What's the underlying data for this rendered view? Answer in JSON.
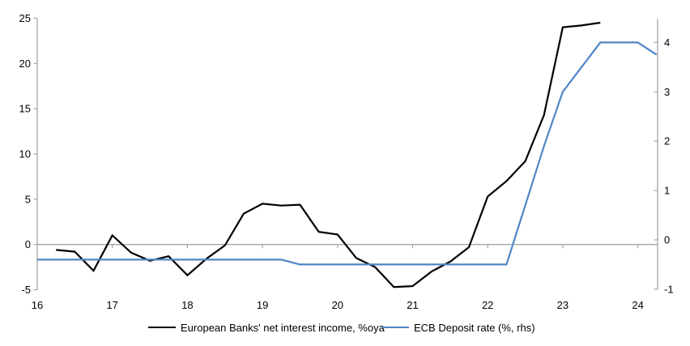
{
  "chart_data": {
    "type": "line",
    "title": "",
    "xlabel": "",
    "ylabel_left": "",
    "ylabel_right": "",
    "grid": "zero-line-only",
    "legend_position": "bottom",
    "x_axis": {
      "ticks": [
        16,
        17,
        18,
        19,
        20,
        21,
        22,
        23,
        24
      ],
      "range": [
        16,
        24.27
      ]
    },
    "left_axis": {
      "ticks": [
        25,
        20,
        15,
        10,
        5,
        0,
        -5
      ],
      "range": [
        -5,
        25
      ]
    },
    "right_axis": {
      "ticks": [
        4,
        3,
        2,
        1,
        0,
        -1
      ],
      "range": [
        -1.01,
        4.49
      ]
    },
    "series": [
      {
        "name": "European Banks' net interest income, %oya",
        "axis": "left",
        "color": "#000000",
        "points": [
          [
            16.25,
            -0.6
          ],
          [
            16.5,
            -0.8
          ],
          [
            16.75,
            -2.9
          ],
          [
            17.0,
            1.0
          ],
          [
            17.25,
            -0.9
          ],
          [
            17.5,
            -1.8
          ],
          [
            17.75,
            -1.3
          ],
          [
            18.0,
            -3.4
          ],
          [
            18.25,
            -1.6
          ],
          [
            18.5,
            -0.1
          ],
          [
            18.75,
            3.4
          ],
          [
            19.0,
            4.5
          ],
          [
            19.25,
            4.3
          ],
          [
            19.5,
            4.4
          ],
          [
            19.75,
            1.4
          ],
          [
            20.0,
            1.1
          ],
          [
            20.25,
            -1.5
          ],
          [
            20.5,
            -2.5
          ],
          [
            20.75,
            -4.7
          ],
          [
            21.0,
            -4.6
          ],
          [
            21.25,
            -3.0
          ],
          [
            21.5,
            -1.9
          ],
          [
            21.75,
            -0.3
          ],
          [
            22.0,
            5.3
          ],
          [
            22.25,
            7.0
          ],
          [
            22.5,
            9.2
          ],
          [
            22.75,
            14.3
          ],
          [
            23.0,
            24.0
          ],
          [
            23.25,
            24.2
          ],
          [
            23.5,
            24.5
          ]
        ]
      },
      {
        "name": "ECB Deposit rate (%, rhs)",
        "axis": "right",
        "color": "#4f86c6",
        "points": [
          [
            16.0,
            -0.4
          ],
          [
            19.25,
            -0.4
          ],
          [
            19.5,
            -0.5
          ],
          [
            22.25,
            -0.5
          ],
          [
            22.5,
            0.7
          ],
          [
            22.75,
            1.9
          ],
          [
            23.0,
            3.0
          ],
          [
            23.25,
            3.5
          ],
          [
            23.5,
            4.0
          ],
          [
            24.0,
            4.0
          ],
          [
            24.25,
            3.75
          ]
        ]
      }
    ]
  },
  "colors": {
    "axis": "#a6a6a6",
    "zero_line": "#a6a6a6",
    "text": "#000000",
    "background": "#ffffff"
  }
}
